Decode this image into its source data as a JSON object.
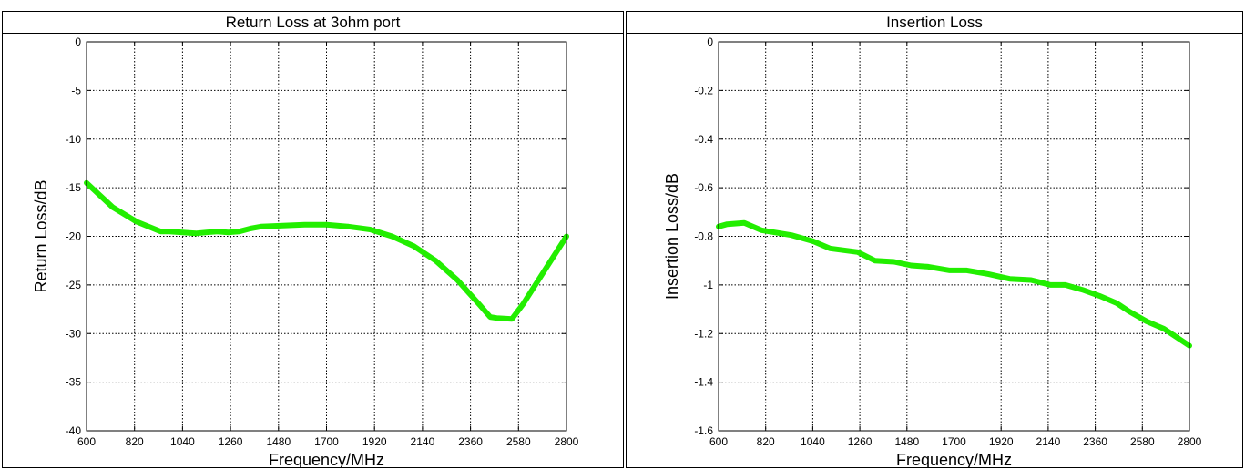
{
  "chart_data": [
    {
      "type": "line",
      "title": "Return Loss at 3ohm port",
      "xlabel": "Frequency/MHz",
      "ylabel": "Return Loss/dB",
      "xlim": [
        600,
        2800
      ],
      "ylim": [
        -40,
        0
      ],
      "xticks": [
        600,
        820,
        1040,
        1260,
        1480,
        1700,
        1920,
        2140,
        2360,
        2580,
        2800
      ],
      "yticks": [
        0,
        -5,
        -10,
        -15,
        -20,
        -25,
        -30,
        -35,
        -40
      ],
      "xtick_labels": [
        "600",
        "820",
        "1040",
        "1260",
        "1480",
        "1700",
        "1920",
        "2140",
        "2360",
        "2580",
        "2800"
      ],
      "ytick_labels": [
        "0",
        "-5",
        "-10",
        "-15",
        "-20",
        "-25",
        "-30",
        "-35",
        "-40"
      ],
      "grid": true,
      "line_color": "#22ee00",
      "series": [
        {
          "x": [
            600,
            720,
            830,
            940,
            980,
            1100,
            1150,
            1200,
            1250,
            1300,
            1350,
            1400,
            1500,
            1600,
            1700,
            1800,
            1900,
            2000,
            2100,
            2200,
            2300,
            2400,
            2450,
            2480,
            2550,
            2600,
            2700,
            2800
          ],
          "y": [
            -14.5,
            -17.0,
            -18.5,
            -19.5,
            -19.5,
            -19.7,
            -19.6,
            -19.5,
            -19.6,
            -19.5,
            -19.2,
            -19.0,
            -18.9,
            -18.8,
            -18.8,
            -19.0,
            -19.3,
            -20.0,
            -21.0,
            -22.5,
            -24.5,
            -27.0,
            -28.3,
            -28.4,
            -28.5,
            -27.0,
            -23.5,
            -20.0
          ]
        }
      ]
    },
    {
      "type": "line",
      "title": "Insertion Loss",
      "xlabel": "Frequency/MHz",
      "ylabel": "Insertion Loss/dB",
      "xlim": [
        600,
        2800
      ],
      "ylim": [
        -1.6,
        0
      ],
      "xticks": [
        600,
        820,
        1040,
        1260,
        1480,
        1700,
        1920,
        2140,
        2360,
        2580,
        2800
      ],
      "yticks": [
        0,
        -0.2,
        -0.4,
        -0.6,
        -0.8,
        -1.0,
        -1.2,
        -1.4,
        -1.6
      ],
      "xtick_labels": [
        "600",
        "820",
        "1040",
        "1260",
        "1480",
        "1700",
        "1920",
        "2140",
        "2360",
        "2580",
        "2800"
      ],
      "ytick_labels": [
        "0",
        "-0.2",
        "-0.4",
        "-0.6",
        "-0.8",
        "-1",
        "-1.2",
        "-1.4",
        "-1.6"
      ],
      "grid": true,
      "line_color": "#22ee00",
      "series": [
        {
          "x": [
            600,
            640,
            720,
            800,
            940,
            1040,
            1120,
            1250,
            1330,
            1420,
            1500,
            1580,
            1680,
            1760,
            1860,
            1960,
            2060,
            2150,
            2220,
            2300,
            2380,
            2460,
            2520,
            2600,
            2680,
            2800
          ],
          "y": [
            -0.76,
            -0.75,
            -0.745,
            -0.775,
            -0.795,
            -0.82,
            -0.85,
            -0.865,
            -0.9,
            -0.905,
            -0.92,
            -0.925,
            -0.94,
            -0.94,
            -0.955,
            -0.975,
            -0.98,
            -1.0,
            -1.0,
            -1.02,
            -1.045,
            -1.075,
            -1.11,
            -1.15,
            -1.18,
            -1.25
          ]
        }
      ]
    }
  ]
}
